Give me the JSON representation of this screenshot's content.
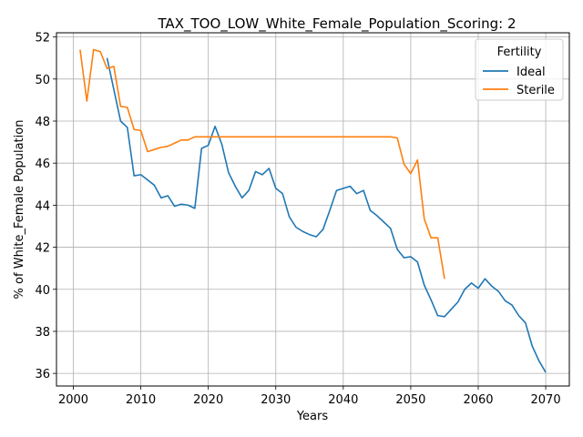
{
  "chart_data": {
    "type": "line",
    "title": "TAX_TOO_LOW_White_Female_Population_Scoring: 2",
    "xlabel": "Years",
    "ylabel": "% of White_Female Population",
    "xlim": [
      1997.5,
      2073.5
    ],
    "ylim": [
      35.4,
      52.2
    ],
    "xticks": [
      2000,
      2010,
      2020,
      2030,
      2040,
      2050,
      2060,
      2070
    ],
    "yticks": [
      36,
      38,
      40,
      42,
      44,
      46,
      48,
      50,
      52
    ],
    "grid": true,
    "legend": {
      "title": "Fertility",
      "placement": "top-right"
    },
    "series": [
      {
        "name": "Ideal",
        "color": "#1f77b4",
        "x": [
          2005,
          2006,
          2007,
          2008,
          2009,
          2010,
          2011,
          2012,
          2013,
          2014,
          2015,
          2016,
          2017,
          2018,
          2019,
          2020,
          2021,
          2022,
          2023,
          2024,
          2025,
          2026,
          2027,
          2028,
          2029,
          2030,
          2031,
          2032,
          2033,
          2034,
          2035,
          2036,
          2037,
          2038,
          2039,
          2040,
          2041,
          2042,
          2043,
          2044,
          2045,
          2046,
          2047,
          2048,
          2049,
          2050,
          2051,
          2052,
          2053,
          2054,
          2055,
          2056,
          2057,
          2058,
          2059,
          2060,
          2061,
          2062,
          2063,
          2064,
          2065,
          2066,
          2067,
          2068,
          2069,
          2070
        ],
        "y": [
          51.0,
          49.5,
          48.0,
          47.7,
          45.4,
          45.45,
          45.2,
          44.95,
          44.35,
          44.45,
          43.95,
          44.05,
          44.0,
          43.85,
          46.7,
          46.85,
          47.75,
          46.9,
          45.55,
          44.9,
          44.35,
          44.7,
          45.6,
          45.45,
          45.75,
          44.8,
          44.55,
          43.45,
          42.95,
          42.75,
          42.6,
          42.5,
          42.85,
          43.75,
          44.7,
          44.8,
          44.9,
          44.55,
          44.7,
          43.75,
          43.5,
          43.2,
          42.9,
          41.9,
          41.5,
          41.55,
          41.3,
          40.2,
          39.5,
          38.75,
          38.7,
          39.05,
          39.4,
          40.0,
          40.3,
          40.05,
          40.5,
          40.15,
          39.9,
          39.45,
          39.25,
          38.75,
          38.4,
          37.3,
          36.6,
          36.05
        ]
      },
      {
        "name": "Sterile",
        "color": "#ff7f0e",
        "x": [
          2001,
          2002,
          2003,
          2004,
          2005,
          2006,
          2007,
          2008,
          2009,
          2010,
          2011,
          2012,
          2013,
          2014,
          2015,
          2016,
          2017,
          2018,
          2019,
          2020,
          2021,
          2022,
          2023,
          2024,
          2025,
          2026,
          2027,
          2028,
          2029,
          2030,
          2031,
          2032,
          2033,
          2034,
          2035,
          2036,
          2037,
          2038,
          2039,
          2040,
          2041,
          2042,
          2043,
          2044,
          2045,
          2046,
          2047,
          2048,
          2049,
          2050,
          2051,
          2052,
          2053,
          2054,
          2055
        ],
        "y": [
          51.4,
          48.95,
          51.4,
          51.3,
          50.5,
          50.6,
          48.7,
          48.65,
          47.6,
          47.55,
          46.55,
          46.65,
          46.75,
          46.8,
          46.95,
          47.1,
          47.1,
          47.25,
          47.25,
          47.25,
          47.25,
          47.25,
          47.25,
          47.25,
          47.25,
          47.25,
          47.25,
          47.25,
          47.25,
          47.25,
          47.25,
          47.25,
          47.25,
          47.25,
          47.25,
          47.25,
          47.25,
          47.25,
          47.25,
          47.25,
          47.25,
          47.25,
          47.25,
          47.25,
          47.25,
          47.25,
          47.25,
          47.2,
          45.95,
          45.5,
          46.15,
          43.35,
          42.45,
          42.45,
          40.5
        ]
      }
    ]
  }
}
